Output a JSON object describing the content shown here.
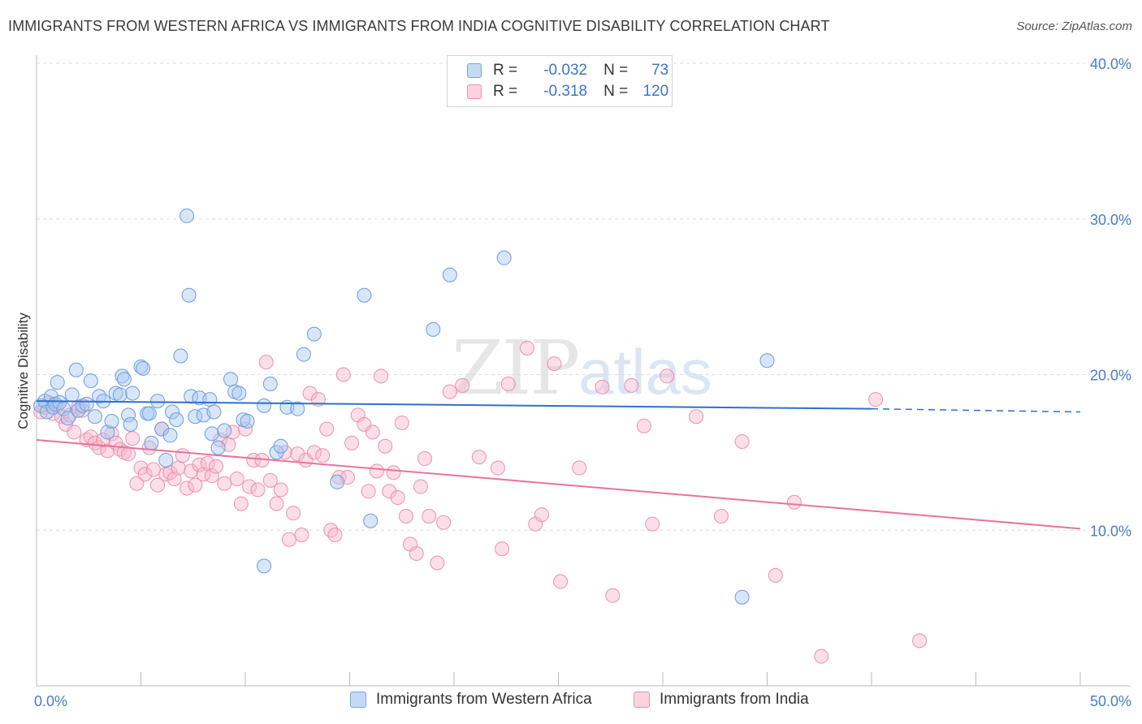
{
  "title": "IMMIGRANTS FROM WESTERN AFRICA VS IMMIGRANTS FROM INDIA COGNITIVE DISABILITY CORRELATION CHART",
  "source": "Source: ZipAtlas.com",
  "watermark": {
    "zip": "ZIP",
    "atlas": "atlas"
  },
  "legend": {
    "r_label": "R =",
    "n_label": "N =",
    "rows": [
      {
        "r": "-0.032",
        "n": "73",
        "color": "#a8c8f0",
        "stroke": "#7aa6e0"
      },
      {
        "r": "-0.318",
        "n": "120",
        "color": "#f7b8cc",
        "stroke": "#ee8fab"
      }
    ]
  },
  "bottom_legend": [
    {
      "label": "Immigrants from Western Africa",
      "color": "#a8c8f0",
      "stroke": "#7aa6e0"
    },
    {
      "label": "Immigrants from India",
      "color": "#f7b8cc",
      "stroke": "#ee8fab"
    }
  ],
  "chart_data": {
    "type": "scatter",
    "title": "IMMIGRANTS FROM WESTERN AFRICA VS IMMIGRANTS FROM INDIA COGNITIVE DISABILITY CORRELATION CHART",
    "xlabel": "",
    "ylabel": "Cognitive Disability",
    "xlim": [
      0,
      50
    ],
    "ylim": [
      0,
      40
    ],
    "x_tick_labels": [
      "0.0%",
      "50.0%"
    ],
    "y_ticks": [
      10,
      20,
      30,
      40
    ],
    "y_tick_labels": [
      "10.0%",
      "20.0%",
      "30.0%",
      "40.0%"
    ],
    "grid": true,
    "legend_position": "top-center",
    "colors": {
      "blue": "#5a8fd8",
      "blue_line": "#2f6fcf",
      "pink": "#ee8fab",
      "pink_line": "#e8739b"
    },
    "series": [
      {
        "name": "Immigrants from Western Africa",
        "color": "blue",
        "trend": {
          "x": [
            0,
            40,
            50
          ],
          "y": [
            18.3,
            17.8,
            17.6
          ],
          "dashed_from": 40
        },
        "points": [
          [
            0.2,
            18.0
          ],
          [
            0.4,
            18.3
          ],
          [
            0.5,
            17.6
          ],
          [
            0.7,
            18.6
          ],
          [
            0.8,
            17.9
          ],
          [
            0.9,
            18.1
          ],
          [
            1.0,
            19.5
          ],
          [
            1.1,
            18.2
          ],
          [
            1.3,
            17.8
          ],
          [
            1.5,
            17.2
          ],
          [
            1.7,
            18.7
          ],
          [
            1.9,
            20.3
          ],
          [
            2.0,
            17.7
          ],
          [
            2.2,
            18.0
          ],
          [
            2.4,
            18.1
          ],
          [
            2.6,
            19.6
          ],
          [
            2.8,
            17.3
          ],
          [
            3.0,
            18.6
          ],
          [
            3.2,
            18.3
          ],
          [
            3.4,
            16.3
          ],
          [
            3.6,
            17.0
          ],
          [
            3.8,
            18.8
          ],
          [
            4.0,
            18.7
          ],
          [
            4.1,
            19.9
          ],
          [
            4.2,
            19.7
          ],
          [
            4.4,
            17.4
          ],
          [
            4.5,
            16.8
          ],
          [
            4.6,
            18.8
          ],
          [
            5.0,
            20.5
          ],
          [
            5.1,
            20.4
          ],
          [
            5.3,
            17.5
          ],
          [
            5.4,
            17.5
          ],
          [
            5.5,
            15.6
          ],
          [
            5.8,
            18.3
          ],
          [
            6.0,
            16.5
          ],
          [
            6.2,
            14.5
          ],
          [
            6.4,
            16.1
          ],
          [
            6.5,
            17.6
          ],
          [
            6.7,
            17.1
          ],
          [
            6.9,
            21.2
          ],
          [
            7.2,
            30.2
          ],
          [
            7.3,
            25.1
          ],
          [
            7.4,
            18.6
          ],
          [
            7.6,
            17.3
          ],
          [
            7.8,
            18.5
          ],
          [
            8.0,
            17.4
          ],
          [
            8.3,
            18.4
          ],
          [
            8.4,
            16.2
          ],
          [
            8.5,
            17.6
          ],
          [
            8.7,
            15.3
          ],
          [
            9.0,
            16.4
          ],
          [
            9.3,
            19.7
          ],
          [
            9.5,
            18.9
          ],
          [
            9.7,
            18.8
          ],
          [
            9.9,
            17.1
          ],
          [
            10.1,
            17.0
          ],
          [
            10.9,
            7.7
          ],
          [
            10.9,
            18.0
          ],
          [
            11.2,
            19.4
          ],
          [
            11.5,
            15.0
          ],
          [
            11.7,
            15.4
          ],
          [
            12.0,
            17.9
          ],
          [
            12.5,
            17.8
          ],
          [
            12.8,
            21.3
          ],
          [
            13.3,
            22.6
          ],
          [
            14.4,
            13.1
          ],
          [
            15.7,
            25.1
          ],
          [
            16.0,
            10.6
          ],
          [
            19.0,
            22.9
          ],
          [
            19.8,
            26.4
          ],
          [
            22.4,
            27.5
          ],
          [
            33.8,
            5.7
          ],
          [
            35.0,
            20.9
          ]
        ]
      },
      {
        "name": "Immigrants from India",
        "color": "pink",
        "trend": {
          "x": [
            0,
            50
          ],
          "y": [
            15.8,
            10.1
          ]
        },
        "points": [
          [
            0.2,
            17.6
          ],
          [
            0.4,
            17.9
          ],
          [
            0.6,
            18.2
          ],
          [
            0.8,
            17.5
          ],
          [
            1.0,
            18.0
          ],
          [
            1.2,
            17.3
          ],
          [
            1.4,
            16.8
          ],
          [
            1.6,
            17.4
          ],
          [
            1.8,
            16.3
          ],
          [
            2.0,
            17.9
          ],
          [
            2.2,
            17.7
          ],
          [
            2.4,
            15.8
          ],
          [
            2.6,
            16.0
          ],
          [
            2.8,
            15.6
          ],
          [
            3.0,
            15.3
          ],
          [
            3.2,
            15.8
          ],
          [
            3.4,
            15.1
          ],
          [
            3.6,
            16.2
          ],
          [
            3.8,
            15.6
          ],
          [
            4.0,
            15.2
          ],
          [
            4.2,
            15.0
          ],
          [
            4.4,
            14.9
          ],
          [
            4.6,
            15.9
          ],
          [
            4.8,
            13.0
          ],
          [
            5.0,
            14.0
          ],
          [
            5.2,
            13.6
          ],
          [
            5.4,
            15.3
          ],
          [
            5.6,
            13.9
          ],
          [
            5.8,
            12.9
          ],
          [
            6.0,
            16.5
          ],
          [
            6.2,
            13.6
          ],
          [
            6.4,
            13.7
          ],
          [
            6.6,
            13.3
          ],
          [
            6.8,
            14.0
          ],
          [
            7.0,
            14.8
          ],
          [
            7.2,
            12.7
          ],
          [
            7.4,
            13.8
          ],
          [
            7.6,
            12.9
          ],
          [
            7.8,
            14.2
          ],
          [
            8.0,
            13.6
          ],
          [
            8.2,
            14.3
          ],
          [
            8.4,
            13.5
          ],
          [
            8.6,
            14.1
          ],
          [
            8.8,
            15.8
          ],
          [
            9.0,
            13.0
          ],
          [
            9.2,
            15.5
          ],
          [
            9.4,
            16.3
          ],
          [
            9.6,
            13.3
          ],
          [
            9.8,
            11.7
          ],
          [
            10.0,
            16.5
          ],
          [
            10.2,
            12.8
          ],
          [
            10.4,
            14.5
          ],
          [
            10.6,
            12.6
          ],
          [
            10.8,
            14.5
          ],
          [
            11.0,
            20.8
          ],
          [
            11.2,
            13.2
          ],
          [
            11.5,
            11.7
          ],
          [
            11.7,
            12.6
          ],
          [
            11.9,
            15.0
          ],
          [
            12.1,
            9.4
          ],
          [
            12.3,
            11.1
          ],
          [
            12.5,
            14.9
          ],
          [
            12.7,
            9.7
          ],
          [
            12.9,
            14.5
          ],
          [
            13.1,
            18.8
          ],
          [
            13.3,
            15.0
          ],
          [
            13.5,
            18.4
          ],
          [
            13.7,
            14.8
          ],
          [
            13.9,
            16.5
          ],
          [
            14.1,
            10.0
          ],
          [
            14.3,
            9.7
          ],
          [
            14.5,
            13.4
          ],
          [
            14.7,
            20.0
          ],
          [
            14.9,
            13.4
          ],
          [
            15.1,
            15.6
          ],
          [
            15.4,
            17.4
          ],
          [
            15.7,
            16.8
          ],
          [
            15.9,
            12.5
          ],
          [
            16.1,
            16.3
          ],
          [
            16.3,
            13.8
          ],
          [
            16.5,
            19.9
          ],
          [
            16.7,
            15.4
          ],
          [
            16.9,
            12.5
          ],
          [
            17.1,
            13.7
          ],
          [
            17.3,
            12.1
          ],
          [
            17.5,
            16.9
          ],
          [
            17.7,
            10.9
          ],
          [
            17.9,
            9.1
          ],
          [
            18.2,
            8.5
          ],
          [
            18.4,
            12.8
          ],
          [
            18.6,
            14.6
          ],
          [
            18.8,
            10.9
          ],
          [
            19.2,
            7.9
          ],
          [
            19.5,
            10.5
          ],
          [
            19.8,
            18.9
          ],
          [
            20.4,
            19.3
          ],
          [
            21.2,
            14.7
          ],
          [
            22.1,
            14.0
          ],
          [
            22.3,
            8.8
          ],
          [
            22.6,
            19.4
          ],
          [
            23.5,
            21.7
          ],
          [
            23.9,
            10.4
          ],
          [
            24.2,
            11.0
          ],
          [
            24.8,
            20.7
          ],
          [
            25.1,
            6.7
          ],
          [
            26.0,
            14.0
          ],
          [
            27.1,
            19.2
          ],
          [
            27.6,
            5.8
          ],
          [
            28.5,
            19.3
          ],
          [
            29.1,
            16.7
          ],
          [
            29.5,
            10.4
          ],
          [
            30.2,
            19.9
          ],
          [
            31.6,
            17.3
          ],
          [
            32.8,
            10.9
          ],
          [
            33.8,
            15.7
          ],
          [
            35.4,
            7.1
          ],
          [
            36.3,
            11.8
          ],
          [
            37.6,
            1.9
          ],
          [
            40.2,
            18.4
          ],
          [
            42.3,
            2.9
          ]
        ]
      }
    ]
  }
}
